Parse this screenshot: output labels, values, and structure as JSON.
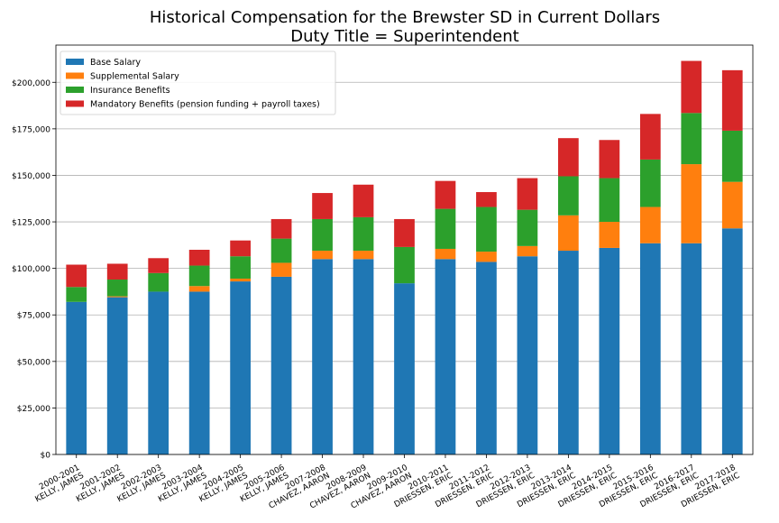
{
  "chart_data": {
    "type": "bar",
    "stacked": true,
    "title_line1": "Historical Compensation for the Brewster SD in Current Dollars",
    "title_line2": "Duty Title = Superintendent",
    "xlabel": "",
    "ylabel": "",
    "ylim": [
      0,
      220000
    ],
    "yticks": [
      0,
      25000,
      50000,
      75000,
      100000,
      125000,
      150000,
      175000,
      200000
    ],
    "ytick_labels": [
      "$0",
      "$25,000",
      "$50,000",
      "$75,000",
      "$100,000",
      "$125,000",
      "$150,000",
      "$175,000",
      "$200,000"
    ],
    "grid": "horizontal",
    "legend_position": "top-left",
    "categories": [
      [
        "2000-2001",
        "KELLY, JAMES"
      ],
      [
        "2001-2002",
        "KELLY, JAMES"
      ],
      [
        "2002-2003",
        "KELLY, JAMES"
      ],
      [
        "2003-2004",
        "KELLY, JAMES"
      ],
      [
        "2004-2005",
        "KELLY, JAMES"
      ],
      [
        "2005-2006",
        "KELLY, JAMES"
      ],
      [
        "2007-2008",
        "CHAVEZ, AARON"
      ],
      [
        "2008-2009",
        "CHAVEZ, AARON"
      ],
      [
        "2009-2010",
        "CHAVEZ, AARON"
      ],
      [
        "2010-2011",
        "DRIESSEN, ERIC"
      ],
      [
        "2011-2012",
        "DRIESSEN, ERIC"
      ],
      [
        "2012-2013",
        "DRIESSEN, ERIC"
      ],
      [
        "2013-2014",
        "DRIESSEN, ERIC"
      ],
      [
        "2014-2015",
        "DRIESSEN, ERIC"
      ],
      [
        "2015-2016",
        "DRIESSEN, ERIC"
      ],
      [
        "2016-2017",
        "DRIESSEN, ERIC"
      ],
      [
        "2017-2018",
        "DRIESSEN, ERIC"
      ]
    ],
    "series": [
      {
        "name": "Base Salary",
        "color": "#1f77b4",
        "values": [
          82000,
          84500,
          87500,
          87500,
          93000,
          95500,
          105000,
          105000,
          92000,
          105000,
          103500,
          106500,
          109500,
          111000,
          113500,
          113500,
          121500
        ]
      },
      {
        "name": "Supplemental Salary",
        "color": "#ff7f0e",
        "values": [
          0,
          500,
          0,
          3000,
          1500,
          7500,
          4500,
          4500,
          0,
          5500,
          5500,
          5500,
          19000,
          14000,
          19500,
          42500,
          25000
        ]
      },
      {
        "name": "Insurance Benefits",
        "color": "#2ca02c",
        "values": [
          8000,
          9000,
          10000,
          11000,
          12000,
          13000,
          17000,
          18000,
          19500,
          21500,
          24000,
          19500,
          21000,
          23500,
          25500,
          27500,
          27500
        ]
      },
      {
        "name": "Mandatory Benefits (pension funding + payroll taxes)",
        "color": "#d62728",
        "values": [
          12000,
          8500,
          8000,
          8500,
          8500,
          10500,
          14000,
          17500,
          15000,
          15000,
          8000,
          17000,
          20500,
          20500,
          24500,
          28000,
          32500
        ]
      }
    ]
  }
}
